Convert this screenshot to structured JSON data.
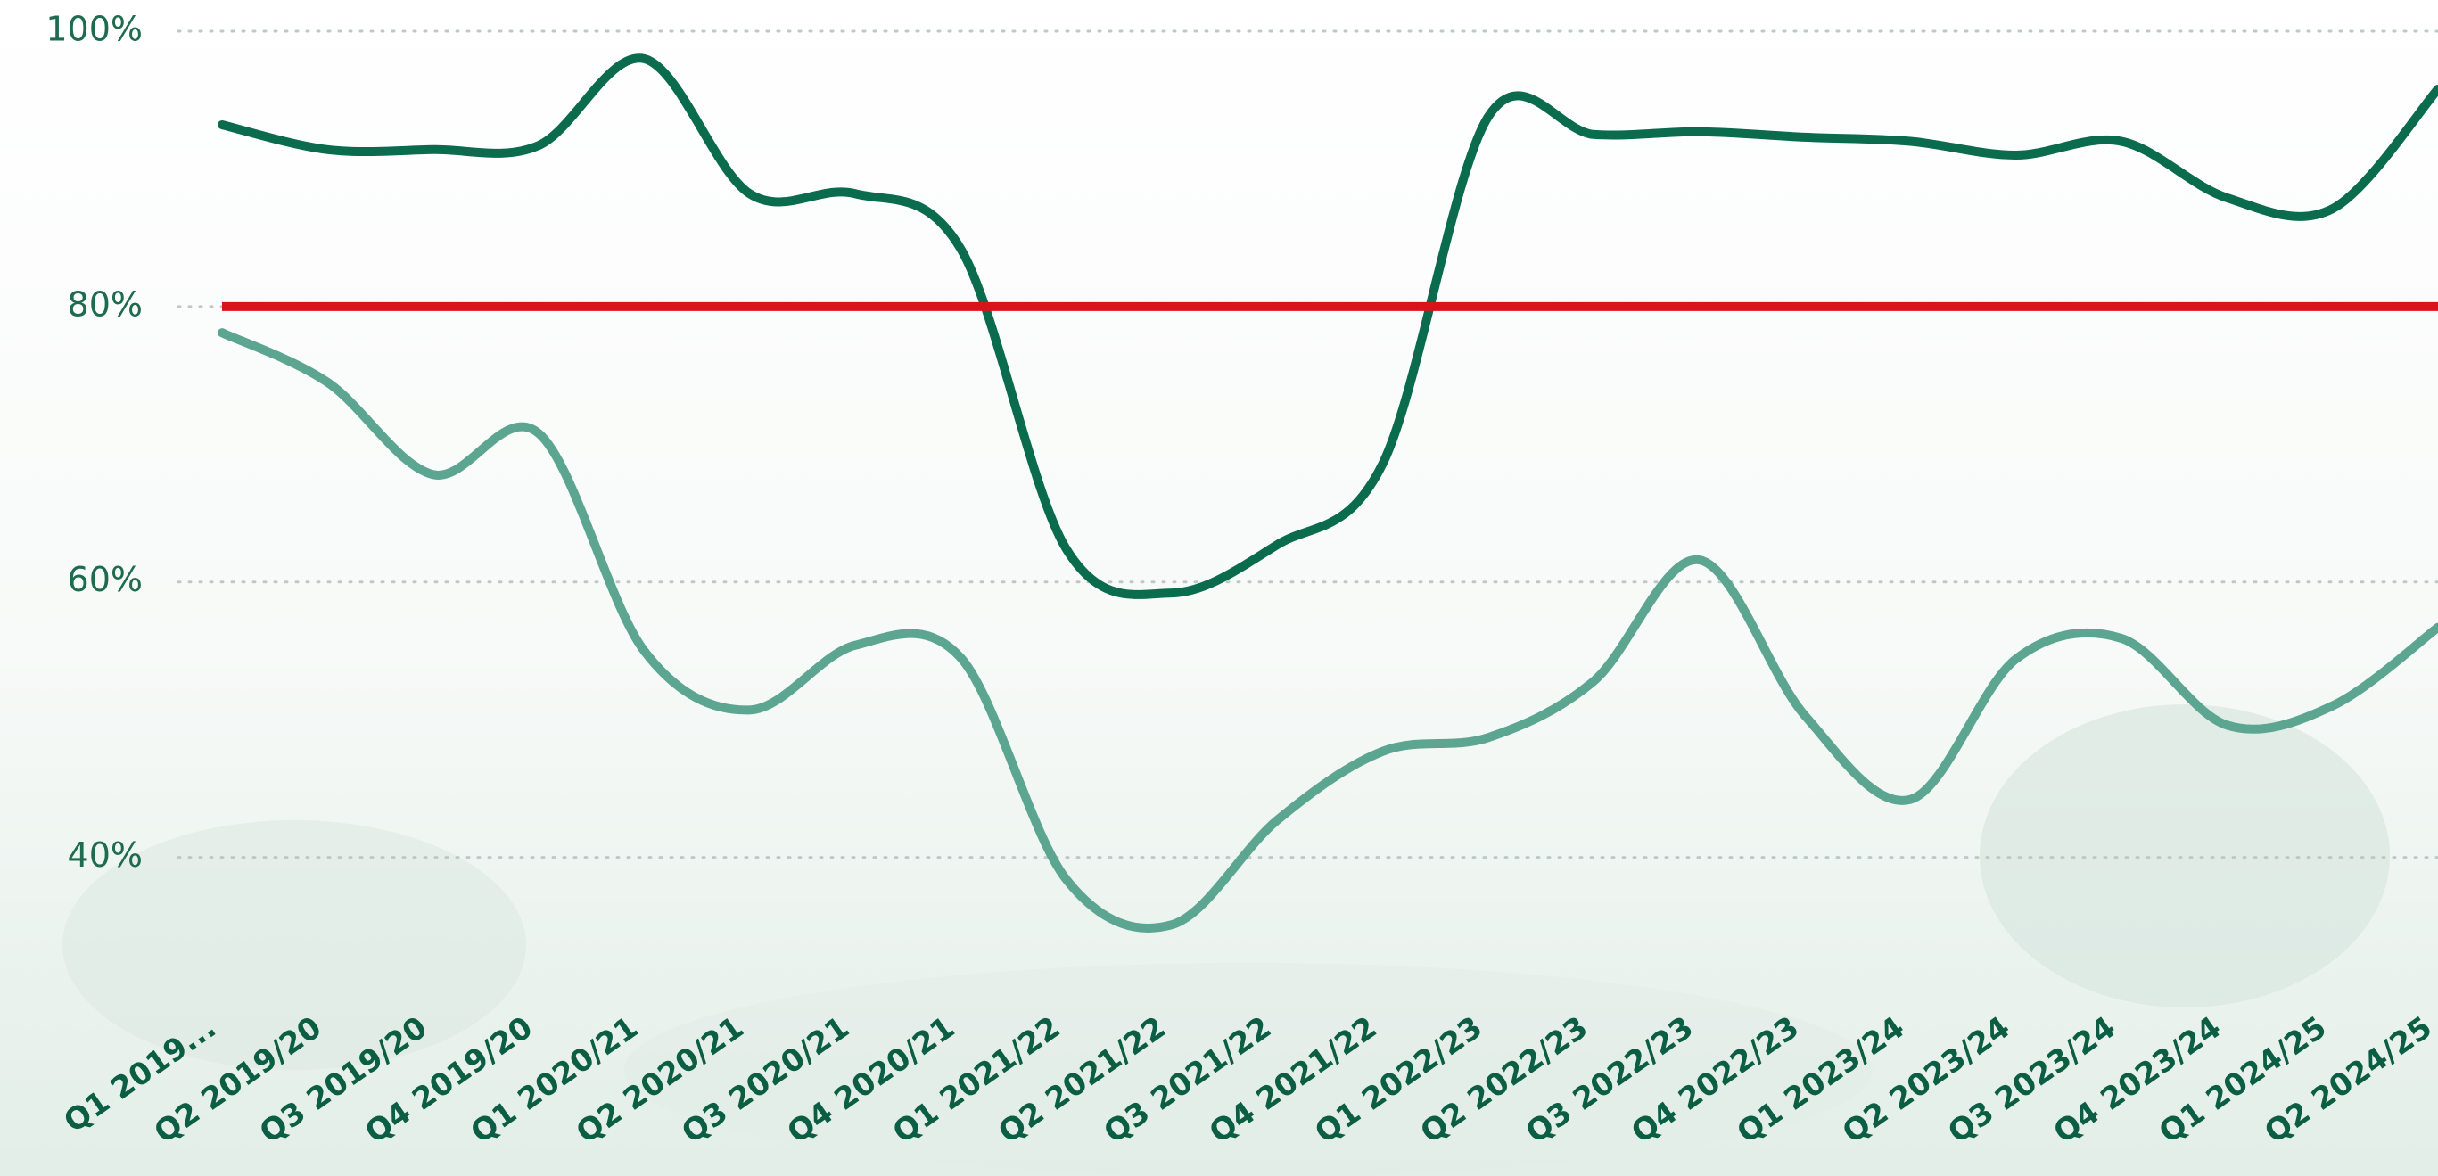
{
  "chart_data": {
    "type": "line",
    "categories": [
      "Q1 2019...",
      "Q2 2019/20",
      "Q3 2019/20",
      "Q4 2019/20",
      "Q1 2020/21",
      "Q2 2020/21",
      "Q3 2020/21",
      "Q4 2020/21",
      "Q1 2021/22",
      "Q2 2021/22",
      "Q3 2021/22",
      "Q4 2021/22",
      "Q1 2022/23",
      "Q2 2022/23",
      "Q3 2022/23",
      "Q4 2022/23",
      "Q1 2023/24",
      "Q2 2023/24",
      "Q3 2023/24",
      "Q4 2023/24",
      "Q1 2024/25",
      "Q2 2024/25"
    ],
    "series": [
      {
        "color": "#0a6b4d",
        "values": [
          93.2,
          91.4,
          91.4,
          91.7,
          98.0,
          88.2,
          88.2,
          84.2,
          62.4,
          59.2,
          62.7,
          68.6,
          93.8,
          92.5,
          92.7,
          92.3,
          92.0,
          91.0,
          92.0,
          87.9,
          87.1,
          95.8
        ]
      },
      {
        "color": "#5ca590",
        "values": [
          78.1,
          74.5,
          67.8,
          70.8,
          55.0,
          50.7,
          55.4,
          54.5,
          38.4,
          35.1,
          42.7,
          47.7,
          48.7,
          52.8,
          61.6,
          50.3,
          44.2,
          54.4,
          55.9,
          49.6,
          51.0,
          56.7
        ]
      }
    ],
    "target": 80,
    "target_color": "#d7141a",
    "ylim": [
      30,
      100
    ],
    "yticks": [
      {
        "value": 40,
        "label": "40%"
      },
      {
        "value": 60,
        "label": "60%"
      },
      {
        "value": 80,
        "label": "80%"
      },
      {
        "value": 100,
        "label": "100%"
      }
    ],
    "grid": true
  }
}
